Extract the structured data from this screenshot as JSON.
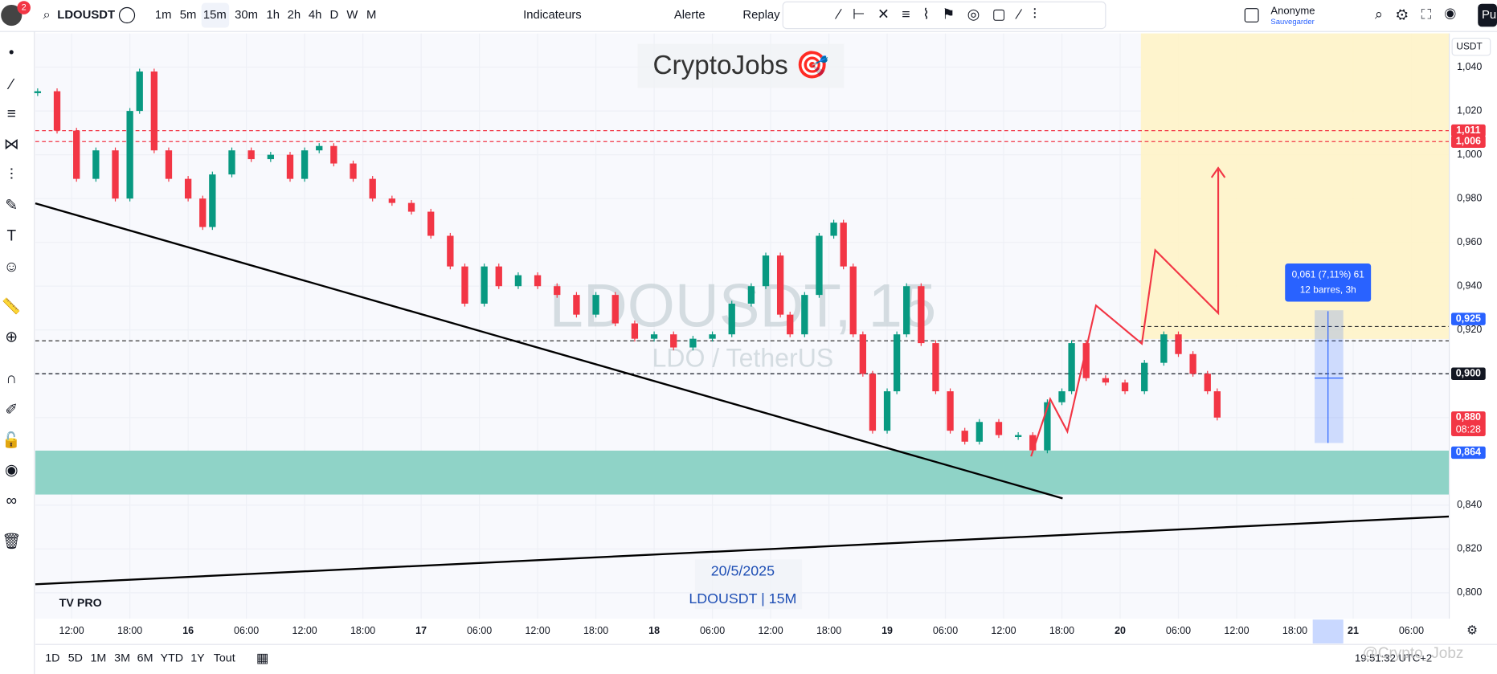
{
  "toolbar": {
    "badge": "2",
    "symbol": "LDOUSDT",
    "intervals": [
      "1m",
      "5m",
      "15m",
      "30m",
      "1h",
      "2h",
      "4h",
      "D",
      "W",
      "M"
    ],
    "indicators": "Indicateurs",
    "alert": "Alerte",
    "replay": "Replay",
    "user": "Anonyme",
    "save": "Sauvegarder",
    "publish": "Pu"
  },
  "chart_data": {
    "type": "candlestick",
    "title": "CryptoJobs 🎯",
    "watermark": "LDOUSDT, 15",
    "watermark_sub": "LDO / TetherUS",
    "date_note": "20/5/2025",
    "symbol_note": "LDOUSDT | 15M",
    "currency": "USDT",
    "x": [
      8.5,
      10.5,
      12.5,
      14.5,
      16.5,
      18,
      19,
      20.5,
      22,
      24,
      25.5,
      26.5,
      28.5,
      30.5,
      32.5,
      34.5,
      36,
      37.5,
      39,
      41,
      43,
      45,
      47,
      49,
      51,
      52.5,
      54.5,
      56,
      58,
      60,
      62,
      64,
      66,
      68,
      70,
      72,
      74,
      76,
      78,
      80,
      82,
      83.5,
      85,
      86,
      87.5,
      89,
      90.5,
      91.5,
      92.5,
      93.5,
      94.5,
      96,
      97,
      98,
      99.5,
      101,
      102.5,
      104,
      105.5,
      107.5,
      109.5,
      111,
      112.5,
      114,
      115,
      116.5,
      118.5,
      120.5,
      122.5,
      124.5,
      126,
      127.5,
      129,
      130
    ],
    "values": [
      1.029,
      1.011,
      0.989,
      1.002,
      0.98,
      1.02,
      1.038,
      1.002,
      0.989,
      0.98,
      0.967,
      0.991,
      1.002,
      0.998,
      1.0,
      0.989,
      1.002,
      1.004,
      0.996,
      0.989,
      0.98,
      0.978,
      0.974,
      0.963,
      0.949,
      0.932,
      0.949,
      0.94,
      0.945,
      0.94,
      0.936,
      0.927,
      0.936,
      0.923,
      0.916,
      0.918,
      0.912,
      0.916,
      0.918,
      0.932,
      0.94,
      0.954,
      0.927,
      0.918,
      0.936,
      0.963,
      0.969,
      0.949,
      0.918,
      0.9,
      0.874,
      0.892,
      0.918,
      0.94,
      0.914,
      0.892,
      0.874,
      0.869,
      0.878,
      0.872,
      0.872,
      0.865,
      0.887,
      0.892,
      0.914,
      0.898,
      0.896,
      0.892,
      0.905,
      0.918,
      0.909,
      0.9,
      0.892,
      0.88
    ],
    "up_color": "#089981",
    "down_color": "#f23645",
    "xlim": [
      8.26,
      153.9
    ],
    "xticks": [
      {
        "value": 12,
        "label": "12:00"
      },
      {
        "value": 18,
        "label": "18:00"
      },
      {
        "value": 24,
        "label": "16"
      },
      {
        "value": 30,
        "label": "06:00"
      },
      {
        "value": 36,
        "label": "12:00"
      },
      {
        "value": 42,
        "label": "18:00"
      },
      {
        "value": 48,
        "label": "17"
      },
      {
        "value": 54,
        "label": "06:00"
      },
      {
        "value": 60,
        "label": "12:00"
      },
      {
        "value": 66,
        "label": "18:00"
      },
      {
        "value": 72,
        "label": "18"
      },
      {
        "value": 78,
        "label": "06:00"
      },
      {
        "value": 84,
        "label": "12:00"
      },
      {
        "value": 90,
        "label": "18:00"
      },
      {
        "value": 96,
        "label": "19"
      },
      {
        "value": 102,
        "label": "06:00"
      },
      {
        "value": 108,
        "label": "12:00"
      },
      {
        "value": 114,
        "label": "18:00"
      },
      {
        "value": 120,
        "label": "20"
      },
      {
        "value": 126,
        "label": "06:00"
      },
      {
        "value": 132,
        "label": "12:00"
      },
      {
        "value": 138,
        "label": "18:00"
      },
      {
        "value": 144,
        "label": "21"
      },
      {
        "value": 150,
        "label": "06:00"
      }
    ],
    "ylim": [
      0.7882,
      1.0554
    ],
    "yticks": [
      {
        "value": 0.8,
        "label": "0,800"
      },
      {
        "value": 0.82,
        "label": "0,820"
      },
      {
        "value": 0.84,
        "label": "0,840"
      },
      {
        "value": 0.88,
        "label": "0,880"
      },
      {
        "value": 0.9,
        "label": "0,900"
      },
      {
        "value": 0.92,
        "label": "0,920"
      },
      {
        "value": 0.94,
        "label": "0,940"
      },
      {
        "value": 0.96,
        "label": "0,960"
      },
      {
        "value": 0.98,
        "label": "0,980"
      },
      {
        "value": 1.0,
        "label": "1,000"
      },
      {
        "value": 1.02,
        "label": "1,020"
      },
      {
        "value": 1.04,
        "label": "1,040"
      }
    ],
    "levels": [
      {
        "value": 1.011,
        "label": "1,011",
        "color": "#f23645"
      },
      {
        "value": 1.006,
        "label": "1,006",
        "color": "#f23645"
      },
      {
        "value": 0.925,
        "label": "0,925",
        "color": "#2962ff"
      },
      {
        "value": 0.9,
        "label": "0,900",
        "color": "#131722"
      },
      {
        "value": 0.88,
        "label": "0,880",
        "color": "#f23645",
        "countdown": "08:28"
      },
      {
        "value": 0.864,
        "label": "0,864",
        "color": "#2962ff"
      }
    ],
    "measure": {
      "line1": "0,061 (7,11%) 61",
      "line2": "12 barres, 3h"
    }
  },
  "bottom": {
    "ranges": [
      "1D",
      "5D",
      "1M",
      "3M",
      "6M",
      "YTD",
      "1Y",
      "Tout"
    ],
    "clock": "19:51:32 UTC+2",
    "watermark": "@Crypto_Jobz"
  }
}
